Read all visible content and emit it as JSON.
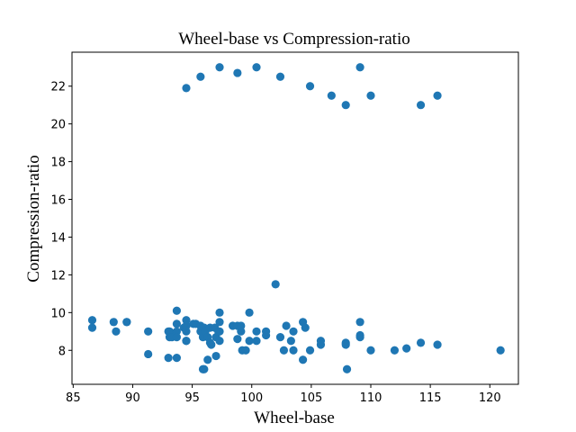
{
  "chart_data": {
    "type": "scatter",
    "title": "Wheel-base vs Compression-ratio",
    "xlabel": "Wheel-base",
    "ylabel": "Compression-ratio",
    "xlim": [
      84.9,
      122.4
    ],
    "ylim": [
      6.2,
      23.8
    ],
    "xticks": [
      85,
      90,
      95,
      100,
      105,
      110,
      115,
      120
    ],
    "yticks": [
      8,
      10,
      12,
      14,
      16,
      18,
      20,
      22
    ],
    "grid": false,
    "marker_color": "#1f77b4",
    "points": [
      [
        94.5,
        21.9
      ],
      [
        95.7,
        22.5
      ],
      [
        97.3,
        23.0
      ],
      [
        98.8,
        22.7
      ],
      [
        100.4,
        23.0
      ],
      [
        102.4,
        22.5
      ],
      [
        104.9,
        22.0
      ],
      [
        106.7,
        21.5
      ],
      [
        107.9,
        21.0
      ],
      [
        109.1,
        23.0
      ],
      [
        110.0,
        21.5
      ],
      [
        114.2,
        21.0
      ],
      [
        115.6,
        21.5
      ],
      [
        86.6,
        9.6
      ],
      [
        86.6,
        9.2
      ],
      [
        88.4,
        9.5
      ],
      [
        88.6,
        9.0
      ],
      [
        89.5,
        9.5
      ],
      [
        89.5,
        9.5
      ],
      [
        91.3,
        9.0
      ],
      [
        91.3,
        7.8
      ],
      [
        93.0,
        9.0
      ],
      [
        93.0,
        7.6
      ],
      [
        93.1,
        9.0
      ],
      [
        93.1,
        8.7
      ],
      [
        93.3,
        8.7
      ],
      [
        93.7,
        10.1
      ],
      [
        93.7,
        9.4
      ],
      [
        93.7,
        9.0
      ],
      [
        93.7,
        8.7
      ],
      [
        93.7,
        7.6
      ],
      [
        94.3,
        9.2
      ],
      [
        94.5,
        9.6
      ],
      [
        94.5,
        9.0
      ],
      [
        94.5,
        8.5
      ],
      [
        94.5,
        9.3
      ],
      [
        94.5,
        8.5
      ],
      [
        95.1,
        9.4
      ],
      [
        95.3,
        9.4
      ],
      [
        95.7,
        9.3
      ],
      [
        95.7,
        9.0
      ],
      [
        95.9,
        7.0
      ],
      [
        95.9,
        8.7
      ],
      [
        96.0,
        7.0
      ],
      [
        96.0,
        9.2
      ],
      [
        96.1,
        9.0
      ],
      [
        96.3,
        7.5
      ],
      [
        96.3,
        8.7
      ],
      [
        96.5,
        8.4
      ],
      [
        96.5,
        9.2
      ],
      [
        96.6,
        8.3
      ],
      [
        96.9,
        9.2
      ],
      [
        97.0,
        7.7
      ],
      [
        97.0,
        8.7
      ],
      [
        97.2,
        9.0
      ],
      [
        97.3,
        8.5
      ],
      [
        97.3,
        9.5
      ],
      [
        97.3,
        10.0
      ],
      [
        97.3,
        9.0
      ],
      [
        98.4,
        9.3
      ],
      [
        98.8,
        8.6
      ],
      [
        98.8,
        9.3
      ],
      [
        99.1,
        9.0
      ],
      [
        99.1,
        9.3
      ],
      [
        99.2,
        8.0
      ],
      [
        99.5,
        8.0
      ],
      [
        99.8,
        10.0
      ],
      [
        99.8,
        8.5
      ],
      [
        100.4,
        9.0
      ],
      [
        100.4,
        8.5
      ],
      [
        101.2,
        8.8
      ],
      [
        101.2,
        9.0
      ],
      [
        102.0,
        11.5
      ],
      [
        102.4,
        8.7
      ],
      [
        102.7,
        8.0
      ],
      [
        102.9,
        9.3
      ],
      [
        103.3,
        8.5
      ],
      [
        103.5,
        9.0
      ],
      [
        103.5,
        8.0
      ],
      [
        104.3,
        7.5
      ],
      [
        104.3,
        9.5
      ],
      [
        104.5,
        9.2
      ],
      [
        104.9,
        8.0
      ],
      [
        105.8,
        8.5
      ],
      [
        105.8,
        8.3
      ],
      [
        107.9,
        8.4
      ],
      [
        107.9,
        8.3
      ],
      [
        108.0,
        7.0
      ],
      [
        109.1,
        9.5
      ],
      [
        109.1,
        8.8
      ],
      [
        109.1,
        8.7
      ],
      [
        110.0,
        8.0
      ],
      [
        112.0,
        8.0
      ],
      [
        113.0,
        8.1
      ],
      [
        114.2,
        8.4
      ],
      [
        115.6,
        8.3
      ],
      [
        120.9,
        8.0
      ]
    ]
  }
}
